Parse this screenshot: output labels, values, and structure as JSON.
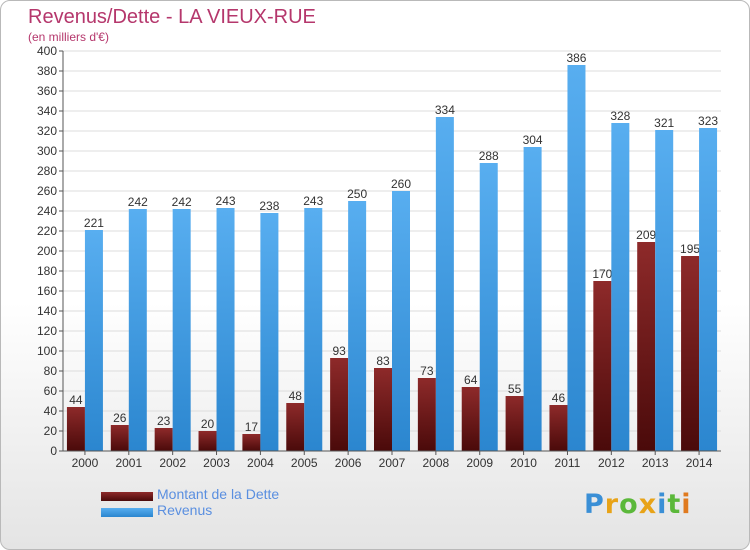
{
  "chart_data": {
    "type": "bar",
    "title": "Revenus/Dette - LA VIEUX-RUE",
    "subtitle": "(en milliers d'€)",
    "categories": [
      "2000",
      "2001",
      "2002",
      "2003",
      "2004",
      "2005",
      "2006",
      "2007",
      "2008",
      "2009",
      "2010",
      "2011",
      "2012",
      "2013",
      "2014"
    ],
    "series": [
      {
        "name": "Montant de la Dette",
        "color": "#7a1a1a",
        "values": [
          44,
          26,
          23,
          20,
          17,
          48,
          93,
          83,
          73,
          64,
          55,
          46,
          170,
          209,
          195
        ]
      },
      {
        "name": "Revenus",
        "color": "#4aa3e6",
        "values": [
          221,
          242,
          242,
          243,
          238,
          243,
          250,
          260,
          334,
          288,
          304,
          386,
          328,
          321,
          323
        ]
      }
    ],
    "ylim": [
      0,
      400
    ],
    "ytick_step": 20,
    "grid": true,
    "legend": "bottom-left"
  },
  "logo": {
    "letters": [
      {
        "ch": "P",
        "color": "#3a8fd6"
      },
      {
        "ch": "r",
        "color": "#e8a317"
      },
      {
        "ch": "o",
        "color": "#5bb83a"
      },
      {
        "ch": "x",
        "color": "#e8a317"
      },
      {
        "ch": "i",
        "color": "#3a8fd6"
      },
      {
        "ch": "t",
        "color": "#5bb83a"
      },
      {
        "ch": "i",
        "color": "#e07a1f"
      }
    ]
  }
}
